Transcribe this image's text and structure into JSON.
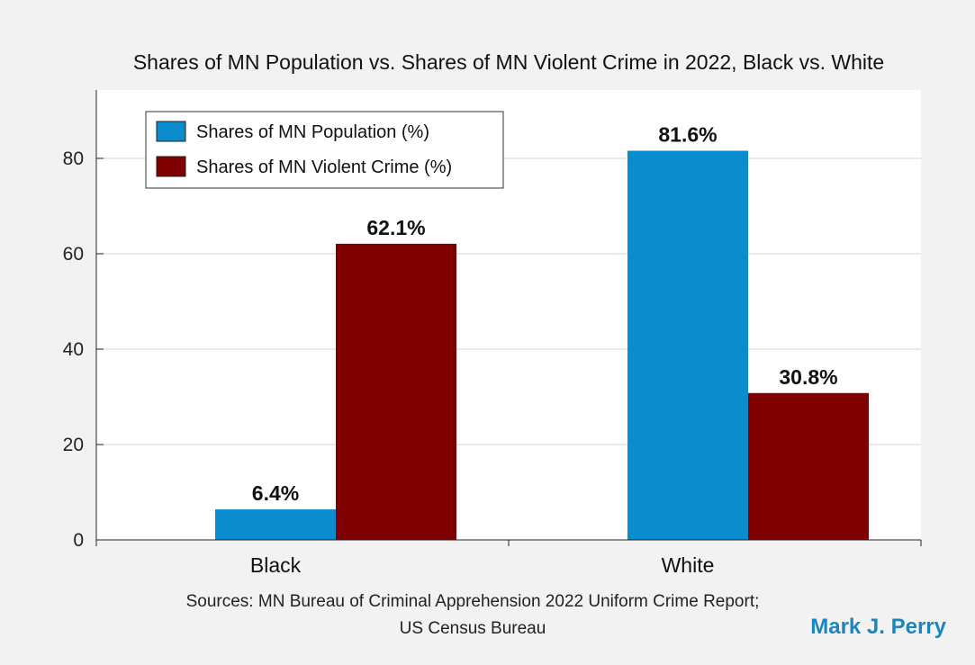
{
  "chart_data": {
    "type": "bar",
    "title": "Shares of MN Population vs. Shares of MN Violent Crime in 2022, Black vs. White",
    "categories": [
      "Black",
      "White"
    ],
    "series": [
      {
        "name": "Shares of MN Population (%)",
        "values": [
          6.4,
          81.6
        ],
        "labels": [
          "6.4%",
          "81.6%"
        ],
        "color": "#0a8ccd"
      },
      {
        "name": "Shares of MN Violent Crime (%)",
        "values": [
          62.1,
          30.8
        ],
        "labels": [
          "62.1%",
          "30.8%"
        ],
        "color": "#7f0000"
      }
    ],
    "ylim": [
      0,
      80
    ],
    "yticks": [
      0,
      20,
      40,
      60,
      80
    ],
    "grid": true,
    "legend_position": "top-left"
  },
  "sources": {
    "line1": "Sources: MN Bureau of Criminal Apprehension 2022 Uniform Crime Report;",
    "line2": "US Census Bureau"
  },
  "author": "Mark J. Perry"
}
